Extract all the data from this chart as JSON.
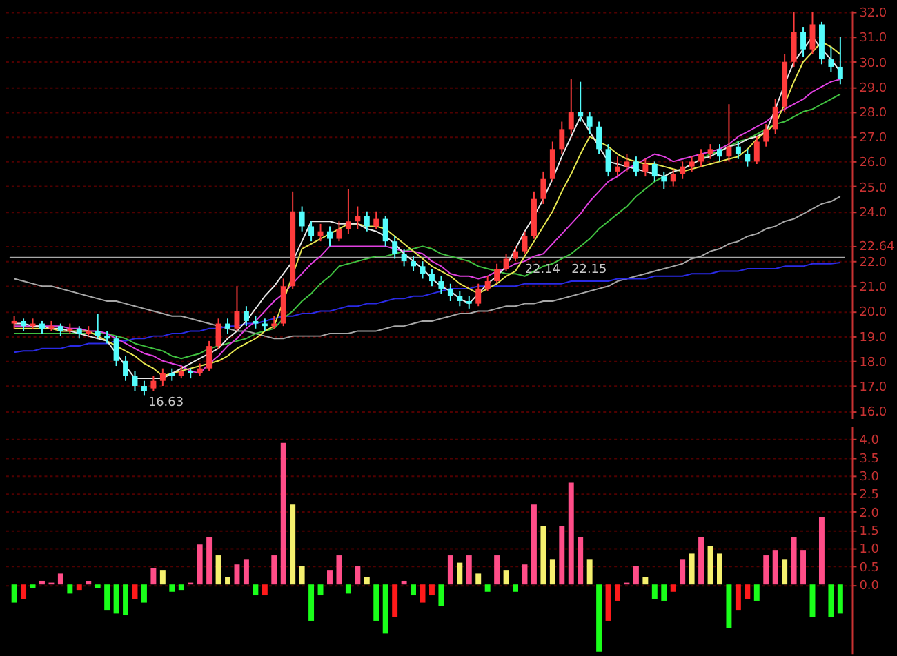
{
  "chart_data": [
    {
      "type": "candlestick",
      "categories": [
        null,
        null,
        null,
        null,
        null,
        null,
        null,
        null,
        null,
        null,
        null,
        null,
        null,
        null,
        null,
        null,
        null,
        null,
        null,
        null,
        null,
        null,
        null,
        null,
        null,
        null,
        null,
        null,
        null,
        null,
        null,
        null,
        null,
        null,
        null,
        null,
        null,
        null,
        null,
        null,
        null,
        null,
        null,
        null,
        null,
        null,
        null,
        null,
        null,
        null,
        null,
        null,
        null,
        null,
        null,
        null,
        null,
        null,
        null,
        null,
        null,
        null,
        null,
        null,
        null,
        null,
        null,
        null,
        null,
        null,
        null,
        null,
        null,
        null,
        null,
        null,
        null,
        null,
        null,
        null,
        null,
        null,
        null,
        null,
        null,
        null,
        null,
        null,
        null,
        null
      ],
      "ohlc": [
        [
          19.5,
          19.8,
          19.3,
          19.6
        ],
        [
          19.6,
          19.7,
          19.2,
          19.4
        ],
        [
          19.4,
          19.7,
          19.3,
          19.5
        ],
        [
          19.5,
          19.6,
          19.1,
          19.3
        ],
        [
          19.3,
          19.6,
          19.2,
          19.4
        ],
        [
          19.4,
          19.5,
          19.0,
          19.2
        ],
        [
          19.2,
          19.5,
          19.1,
          19.3
        ],
        [
          19.3,
          19.4,
          18.9,
          19.1
        ],
        [
          19.1,
          19.4,
          19.0,
          19.2
        ],
        [
          19.2,
          19.9,
          18.9,
          19.0
        ],
        [
          19.0,
          19.2,
          18.7,
          18.9
        ],
        [
          18.9,
          19.0,
          17.8,
          18.0
        ],
        [
          18.0,
          18.2,
          17.2,
          17.4
        ],
        [
          17.4,
          17.6,
          16.8,
          17.0
        ],
        [
          17.0,
          17.2,
          16.63,
          16.8
        ],
        [
          16.9,
          17.4,
          16.8,
          17.2
        ],
        [
          17.2,
          17.7,
          17.0,
          17.5
        ],
        [
          17.5,
          17.7,
          17.2,
          17.4
        ],
        [
          17.4,
          17.8,
          17.3,
          17.6
        ],
        [
          17.6,
          17.7,
          17.3,
          17.5
        ],
        [
          17.5,
          17.9,
          17.4,
          17.7
        ],
        [
          17.7,
          18.8,
          17.6,
          18.6
        ],
        [
          18.6,
          19.7,
          18.5,
          19.5
        ],
        [
          19.5,
          19.7,
          19.1,
          19.3
        ],
        [
          19.3,
          21.0,
          19.2,
          20.0
        ],
        [
          20.0,
          20.2,
          19.4,
          19.6
        ],
        [
          19.6,
          19.8,
          19.3,
          19.5
        ],
        [
          19.5,
          19.7,
          19.2,
          19.4
        ],
        [
          19.4,
          19.8,
          19.3,
          19.5
        ],
        [
          19.5,
          21.3,
          19.4,
          21.0
        ],
        [
          21.0,
          24.8,
          20.9,
          24.0
        ],
        [
          24.0,
          24.2,
          23.2,
          23.4
        ],
        [
          23.4,
          23.6,
          22.8,
          23.0
        ],
        [
          23.0,
          23.5,
          22.8,
          23.2
        ],
        [
          23.2,
          23.4,
          22.6,
          22.9
        ],
        [
          22.9,
          23.6,
          22.8,
          23.3
        ],
        [
          23.3,
          24.9,
          23.1,
          23.6
        ],
        [
          23.6,
          24.2,
          23.3,
          23.8
        ],
        [
          23.8,
          24.0,
          23.2,
          23.4
        ],
        [
          23.4,
          24.0,
          23.3,
          23.7
        ],
        [
          23.7,
          23.8,
          22.6,
          22.8
        ],
        [
          22.8,
          23.0,
          22.1,
          22.3
        ],
        [
          22.3,
          22.5,
          21.8,
          22.0
        ],
        [
          22.0,
          22.2,
          21.6,
          21.8
        ],
        [
          21.8,
          22.0,
          21.3,
          21.5
        ],
        [
          21.5,
          21.7,
          21.0,
          21.2
        ],
        [
          21.2,
          21.4,
          20.7,
          20.9
        ],
        [
          20.9,
          21.1,
          20.4,
          20.6
        ],
        [
          20.6,
          20.8,
          20.2,
          20.4
        ],
        [
          20.4,
          20.6,
          20.1,
          20.3
        ],
        [
          20.3,
          21.1,
          20.2,
          20.9
        ],
        [
          20.9,
          21.4,
          20.8,
          21.2
        ],
        [
          21.2,
          21.9,
          21.1,
          21.7
        ],
        [
          21.7,
          22.3,
          21.6,
          22.1
        ],
        [
          22.1,
          22.6,
          22.0,
          22.4
        ],
        [
          22.4,
          23.2,
          22.3,
          23.0
        ],
        [
          23.0,
          24.8,
          22.9,
          24.5
        ],
        [
          24.5,
          25.6,
          24.3,
          25.3
        ],
        [
          25.3,
          26.8,
          25.2,
          26.5
        ],
        [
          26.5,
          27.6,
          26.3,
          27.3
        ],
        [
          27.3,
          29.3,
          27.1,
          28.0
        ],
        [
          28.0,
          29.2,
          27.6,
          27.8
        ],
        [
          27.8,
          28.0,
          27.1,
          27.4
        ],
        [
          27.4,
          27.6,
          26.3,
          26.5
        ],
        [
          26.5,
          26.7,
          25.4,
          25.6
        ],
        [
          25.6,
          26.2,
          25.4,
          25.8
        ],
        [
          25.8,
          26.3,
          25.6,
          26.0
        ],
        [
          26.0,
          26.2,
          25.4,
          25.6
        ],
        [
          25.6,
          26.1,
          25.4,
          25.9
        ],
        [
          25.9,
          26.0,
          25.2,
          25.4
        ],
        [
          25.4,
          25.6,
          24.9,
          25.2
        ],
        [
          25.2,
          25.7,
          25.0,
          25.5
        ],
        [
          25.5,
          26.0,
          25.3,
          25.8
        ],
        [
          25.8,
          26.2,
          25.6,
          26.0
        ],
        [
          26.0,
          26.5,
          25.8,
          26.3
        ],
        [
          26.3,
          26.7,
          26.1,
          26.5
        ],
        [
          26.5,
          26.7,
          26.0,
          26.2
        ],
        [
          26.2,
          28.3,
          26.0,
          26.6
        ],
        [
          26.6,
          26.8,
          26.1,
          26.3
        ],
        [
          26.3,
          26.5,
          25.8,
          26.0
        ],
        [
          26.0,
          27.0,
          25.9,
          26.8
        ],
        [
          26.8,
          27.5,
          26.6,
          27.3
        ],
        [
          27.3,
          28.5,
          27.1,
          28.2
        ],
        [
          28.2,
          30.3,
          28.0,
          30.0
        ],
        [
          30.0,
          32.0,
          29.8,
          31.2
        ],
        [
          31.2,
          31.4,
          30.2,
          30.5
        ],
        [
          30.5,
          32.0,
          30.3,
          31.5
        ],
        [
          31.5,
          31.6,
          29.9,
          30.1
        ],
        [
          30.1,
          30.6,
          29.6,
          29.8
        ],
        [
          29.8,
          31.0,
          29.1,
          29.3
        ]
      ],
      "colors": [
        "#ff3c3c",
        "#54fcfc",
        "#ff3c3c",
        "#54fcfc",
        "#ff3c3c",
        "#54fcfc",
        "#ff3c3c",
        "#54fcfc",
        "#ff3c3c",
        "#54fcfc",
        "#54fcfc",
        "#54fcfc",
        "#54fcfc",
        "#54fcfc",
        "#54fcfc",
        "#ff3c3c",
        "#ff3c3c",
        "#54fcfc",
        "#ff3c3c",
        "#54fcfc",
        "#ff3c3c",
        "#ff3c3c",
        "#ff3c3c",
        "#54fcfc",
        "#ff3c3c",
        "#54fcfc",
        "#54fcfc",
        "#54fcfc",
        "#ff3c3c",
        "#ff3c3c",
        "#ff3c3c",
        "#54fcfc",
        "#54fcfc",
        "#ff3c3c",
        "#54fcfc",
        "#ff3c3c",
        "#ff3c3c",
        "#ff3c3c",
        "#54fcfc",
        "#ff3c3c",
        "#54fcfc",
        "#54fcfc",
        "#54fcfc",
        "#54fcfc",
        "#54fcfc",
        "#54fcfc",
        "#54fcfc",
        "#54fcfc",
        "#54fcfc",
        "#54fcfc",
        "#ff3c3c",
        "#ff3c3c",
        "#ff3c3c",
        "#ff3c3c",
        "#ff3c3c",
        "#ff3c3c",
        "#ff3c3c",
        "#ff3c3c",
        "#ff3c3c",
        "#ff3c3c",
        "#ff3c3c",
        "#54fcfc",
        "#54fcfc",
        "#54fcfc",
        "#54fcfc",
        "#ff3c3c",
        "#ff3c3c",
        "#54fcfc",
        "#ff3c3c",
        "#54fcfc",
        "#54fcfc",
        "#ff3c3c",
        "#ff3c3c",
        "#ff3c3c",
        "#ff3c3c",
        "#ff3c3c",
        "#54fcfc",
        "#ff3c3c",
        "#54fcfc",
        "#54fcfc",
        "#ff3c3c",
        "#ff3c3c",
        "#ff3c3c",
        "#ff3c3c",
        "#ff3c3c",
        "#54fcfc",
        "#ff3c3c",
        "#54fcfc",
        "#54fcfc",
        "#54fcfc"
      ],
      "series": [
        {
          "type": "line",
          "color": "#a8a8a8",
          "values": [
            21.3,
            21.2,
            21.1,
            21.0,
            21.0,
            20.9,
            20.8,
            20.7,
            20.6,
            20.5,
            20.4,
            20.4,
            20.3,
            20.2,
            20.1,
            20.0,
            19.9,
            19.8,
            19.8,
            19.7,
            19.6,
            19.5,
            19.4,
            19.3,
            19.2,
            19.2,
            19.1,
            19.0,
            18.9,
            18.9,
            19.0,
            19.0,
            19.0,
            19.0,
            19.1,
            19.1,
            19.1,
            19.2,
            19.2,
            19.2,
            19.3,
            19.4,
            19.4,
            19.5,
            19.6,
            19.6,
            19.7,
            19.8,
            19.9,
            19.9,
            20.0,
            20.0,
            20.1,
            20.2,
            20.2,
            20.3,
            20.3,
            20.4,
            20.4,
            20.5,
            20.6,
            20.7,
            20.8,
            20.9,
            21.0,
            21.2,
            21.3,
            21.4,
            21.5,
            21.6,
            21.7,
            21.8,
            21.9,
            22.1,
            22.2,
            22.4,
            22.5,
            22.7,
            22.8,
            23.0,
            23.1,
            23.3,
            23.4,
            23.6,
            23.7,
            23.9,
            24.1,
            24.3,
            24.4,
            24.6
          ]
        },
        {
          "type": "line",
          "color": "#2a2ae6",
          "values": [
            18.35,
            18.4,
            18.4,
            18.5,
            18.5,
            18.5,
            18.6,
            18.6,
            18.7,
            18.7,
            18.7,
            18.8,
            18.8,
            18.9,
            18.9,
            19.0,
            19.0,
            19.1,
            19.1,
            19.2,
            19.2,
            19.3,
            19.3,
            19.4,
            19.4,
            19.5,
            19.5,
            19.6,
            19.7,
            19.8,
            19.8,
            19.9,
            19.9,
            20.0,
            20.0,
            20.1,
            20.2,
            20.2,
            20.3,
            20.3,
            20.4,
            20.5,
            20.5,
            20.6,
            20.6,
            20.7,
            20.8,
            20.9,
            20.9,
            20.9,
            21.0,
            21.0,
            21.0,
            21.0,
            21.0,
            21.1,
            21.1,
            21.1,
            21.1,
            21.1,
            21.2,
            21.2,
            21.2,
            21.2,
            21.2,
            21.3,
            21.3,
            21.3,
            21.3,
            21.4,
            21.4,
            21.4,
            21.4,
            21.5,
            21.5,
            21.5,
            21.6,
            21.6,
            21.6,
            21.7,
            21.7,
            21.7,
            21.7,
            21.8,
            21.8,
            21.8,
            21.9,
            21.9,
            21.9,
            21.95
          ]
        },
        {
          "type": "line",
          "color": "#40c040",
          "values": [
            19.1,
            19.1,
            19.1,
            19.1,
            19.1,
            19.1,
            19.1,
            19.1,
            19.1,
            19.1,
            19.1,
            19.0,
            18.9,
            18.7,
            18.6,
            18.5,
            18.4,
            18.2,
            18.1,
            18.2,
            18.3,
            18.5,
            18.6,
            18.7,
            18.8,
            18.9,
            19.1,
            19.2,
            19.3,
            19.7,
            20.0,
            20.4,
            20.7,
            21.1,
            21.4,
            21.8,
            21.9,
            22.0,
            22.1,
            22.2,
            22.2,
            22.3,
            22.4,
            22.5,
            22.6,
            22.5,
            22.3,
            22.2,
            22.1,
            22.0,
            21.8,
            21.7,
            21.6,
            21.5,
            21.5,
            21.4,
            21.6,
            21.8,
            21.9,
            22.1,
            22.3,
            22.6,
            22.9,
            23.3,
            23.6,
            23.9,
            24.2,
            24.6,
            24.9,
            25.2,
            25.4,
            25.6,
            25.7,
            25.9,
            26.1,
            26.3,
            26.4,
            26.6,
            26.8,
            26.9,
            27.1,
            27.3,
            27.5,
            27.6,
            27.8,
            28.0,
            28.1,
            28.3,
            28.5,
            28.7
          ]
        },
        {
          "type": "line",
          "color": "#e040e0",
          "values": [
            19.4,
            19.4,
            19.4,
            19.4,
            19.4,
            19.4,
            19.3,
            19.3,
            19.2,
            19.2,
            19.1,
            18.9,
            18.7,
            18.5,
            18.3,
            18.2,
            18.0,
            17.9,
            17.8,
            17.6,
            17.5,
            17.9,
            18.2,
            18.6,
            18.9,
            19.3,
            19.6,
            20.0,
            20.4,
            20.7,
            21.1,
            21.5,
            21.9,
            22.2,
            22.6,
            22.6,
            22.6,
            22.6,
            22.6,
            22.6,
            22.6,
            22.5,
            22.4,
            22.4,
            22.3,
            22.0,
            21.8,
            21.5,
            21.4,
            21.4,
            21.3,
            21.4,
            21.6,
            21.7,
            21.9,
            22.0,
            22.2,
            22.3,
            22.7,
            23.1,
            23.5,
            23.9,
            24.4,
            24.8,
            25.2,
            25.4,
            25.7,
            25.9,
            26.1,
            26.3,
            26.2,
            26.0,
            26.1,
            26.2,
            26.3,
            26.4,
            26.5,
            26.7,
            27.0,
            27.2,
            27.4,
            27.6,
            27.9,
            28.1,
            28.3,
            28.5,
            28.8,
            29.0,
            29.2,
            29.3
          ]
        },
        {
          "type": "line",
          "color": "#e6e650",
          "values": [
            19.3,
            19.3,
            19.3,
            19.3,
            19.3,
            19.2,
            19.2,
            19.2,
            19.2,
            19.0,
            18.8,
            18.6,
            18.4,
            18.2,
            17.9,
            17.7,
            17.4,
            17.5,
            17.6,
            17.7,
            17.8,
            17.9,
            18.0,
            18.2,
            18.5,
            18.7,
            18.9,
            19.2,
            19.4,
            20.4,
            null,
            22.5,
            22.7,
            22.9,
            23.1,
            23.3,
            23.5,
            23.5,
            23.4,
            23.4,
            23.3,
            23.0,
            22.7,
            22.4,
            22.1,
            21.8,
            21.6,
            21.4,
            21.1,
            20.9,
            20.7,
            20.9,
            21.1,
            21.4,
            21.6,
            22.2,
            22.8,
            23.4,
            24.0,
            24.8,
            25.5,
            26.3,
            27.0,
            26.8,
            26.6,
            26.3,
            26.1,
            26.0,
            25.9,
            25.9,
            25.8,
            25.7,
            25.6,
            25.7,
            25.8,
            25.9,
            26.0,
            26.1,
            26.2,
            26.5,
            26.9,
            27.2,
            27.5,
            28.3,
            29.2,
            30.0,
            30.4,
            30.8,
            30.6,
            30.3
          ]
        },
        {
          "type": "line",
          "color": "#e8e8e8",
          "values": [
            19.5,
            19.5,
            19.4,
            19.4,
            19.3,
            19.3,
            19.2,
            19.1,
            19.0,
            18.9,
            18.8,
            18.3,
            17.8,
            17.3,
            17.3,
            17.3,
            17.3,
            17.5,
            17.7,
            17.9,
            18.1,
            18.3,
            18.5,
            18.9,
            19.2,
            19.6,
            20.1,
            20.6,
            21.0,
            21.5,
            22.0,
            22.8,
            23.6,
            23.6,
            23.6,
            23.5,
            23.5,
            23.5,
            23.3,
            23.2,
            23.0,
            22.7,
            22.3,
            22.0,
            21.7,
            21.3,
            21.0,
            20.8,
            20.5,
            20.3,
            20.7,
            21.1,
            21.4,
            21.8,
            22.5,
            23.2,
            23.8,
            24.5,
            25.3,
            26.2,
            27.0,
            27.8,
            27.2,
            26.6,
            26.0,
            25.9,
            25.8,
            25.7,
            25.6,
            25.5,
            25.4,
            25.6,
            25.7,
            25.9,
            26.1,
            26.2,
            26.4,
            26.6,
            26.7,
            26.9,
            27.0,
            27.2,
            28.1,
            29.1,
            30.0,
            30.5,
            31.0,
            30.5,
            30.1,
            29.6
          ]
        }
      ],
      "ylim": [
        15.7,
        32.05
      ],
      "yticks": [
        {
          "value": 16,
          "label": "16.0"
        },
        {
          "value": 17,
          "label": "17.0"
        },
        {
          "value": 18,
          "label": "18.0"
        },
        {
          "value": 19,
          "label": "19.0"
        },
        {
          "value": 20,
          "label": "20.0"
        },
        {
          "value": 21,
          "label": "21.0"
        },
        {
          "value": 22,
          "label": "22.0"
        },
        {
          "value": 22.64,
          "label": "22.64"
        },
        {
          "value": 24,
          "label": "24.0"
        },
        {
          "value": 25,
          "label": "25.0"
        },
        {
          "value": 26,
          "label": "26.0"
        },
        {
          "value": 27,
          "label": "27.0"
        },
        {
          "value": 28,
          "label": "28.0"
        },
        {
          "value": 29,
          "label": "29.0"
        },
        {
          "value": 30,
          "label": "30.0"
        },
        {
          "value": 31,
          "label": "31.0"
        },
        {
          "value": 32,
          "label": "32.0"
        }
      ],
      "grid": "y",
      "tick_labels": "y",
      "ref_lines": [
        {
          "axis": "y",
          "value": 22.15,
          "label": "22.15",
          "color": "#a8a8a8"
        }
      ],
      "annotations": [
        "16.63",
        "22.14"
      ]
    },
    {
      "type": "bar",
      "categories": [
        null,
        null,
        null,
        null,
        null,
        null,
        null,
        null,
        null,
        null,
        null,
        null,
        null,
        null,
        null,
        null,
        null,
        null,
        null,
        null,
        null,
        null,
        null,
        null,
        null,
        null,
        null,
        null,
        null,
        null,
        null,
        null,
        null,
        null,
        null,
        null,
        null,
        null,
        null,
        null,
        null,
        null,
        null,
        null,
        null,
        null,
        null,
        null,
        null,
        null,
        null,
        null,
        null,
        null,
        null,
        null,
        null,
        null,
        null,
        null,
        null,
        null,
        null,
        null,
        null,
        null,
        null,
        null,
        null,
        null,
        null,
        null,
        null,
        null,
        null,
        null,
        null,
        null,
        null,
        null,
        null,
        null,
        null,
        null,
        null,
        null,
        null,
        null,
        null,
        null
      ],
      "values": [
        -0.5,
        -0.4,
        -0.1,
        0.1,
        0.05,
        0.3,
        -0.25,
        -0.15,
        0.1,
        -0.1,
        -0.7,
        -0.8,
        -0.85,
        -0.4,
        -0.5,
        0.45,
        0.4,
        -0.2,
        -0.15,
        0.05,
        1.1,
        1.3,
        0.8,
        0.2,
        0.55,
        0.7,
        -0.3,
        -0.3,
        0.8,
        3.9,
        2.2,
        0.5,
        -1.0,
        -0.3,
        0.4,
        0.8,
        -0.25,
        0.5,
        0.2,
        -1.0,
        -1.35,
        -0.9,
        0.1,
        -0.3,
        -0.5,
        -0.3,
        -0.6,
        0.8,
        0.6,
        0.8,
        0.3,
        -0.2,
        0.8,
        0.4,
        -0.2,
        0.55,
        2.2,
        1.6,
        0.7,
        1.6,
        2.8,
        1.3,
        0.7,
        -1.85,
        -1.0,
        -0.45,
        0.05,
        0.5,
        0.2,
        -0.4,
        -0.45,
        -0.2,
        0.7,
        0.85,
        1.3,
        1.05,
        0.85,
        -1.2,
        -0.7,
        -0.4,
        -0.45,
        0.8,
        0.95,
        0.7,
        1.3,
        0.95,
        -0.9,
        1.85,
        -0.9,
        -0.8
      ],
      "colors": [
        "#1aff1a",
        "#ff1a1a",
        "#1aff1a",
        "#ff4d88",
        "#ff4d88",
        "#ff4d88",
        "#1aff1a",
        "#ff1a1a",
        "#ff4d88",
        "#1aff1a",
        "#1aff1a",
        "#1aff1a",
        "#1aff1a",
        "#ff1a1a",
        "#1aff1a",
        "#ff4d88",
        "#f5f06e",
        "#1aff1a",
        "#1aff1a",
        "#ff4d88",
        "#ff4d88",
        "#ff4d88",
        "#f5f06e",
        "#f5f06e",
        "#ff4d88",
        "#ff4d88",
        "#1aff1a",
        "#ff1a1a",
        "#ff4d88",
        "#ff4d88",
        "#f5f06e",
        "#f5f06e",
        "#1aff1a",
        "#1aff1a",
        "#ff4d88",
        "#ff4d88",
        "#1aff1a",
        "#ff4d88",
        "#f5f06e",
        "#1aff1a",
        "#1aff1a",
        "#ff1a1a",
        "#ff4d88",
        "#1aff1a",
        "#ff1a1a",
        "#ff1a1a",
        "#1aff1a",
        "#ff4d88",
        "#f5f06e",
        "#ff4d88",
        "#f5f06e",
        "#1aff1a",
        "#ff4d88",
        "#f5f06e",
        "#1aff1a",
        "#ff4d88",
        "#ff4d88",
        "#f5f06e",
        "#f5f06e",
        "#ff4d88",
        "#ff4d88",
        "#ff4d88",
        "#f5f06e",
        "#1aff1a",
        "#ff1a1a",
        "#ff1a1a",
        "#ff4d88",
        "#ff4d88",
        "#f5f06e",
        "#1aff1a",
        "#1aff1a",
        "#ff1a1a",
        "#ff4d88",
        "#f5f06e",
        "#ff4d88",
        "#f5f06e",
        "#f5f06e",
        "#1aff1a",
        "#ff1a1a",
        "#ff1a1a",
        "#1aff1a",
        "#ff4d88",
        "#ff4d88",
        "#f5f06e",
        "#ff4d88",
        "#ff4d88",
        "#1aff1a",
        "#ff4d88",
        "#1aff1a",
        "#1aff1a"
      ],
      "ylim": [
        -1.9,
        4.35
      ],
      "yticks": [
        {
          "value": 0,
          "label": "0.0"
        },
        {
          "value": 0.5,
          "label": "0.5"
        },
        {
          "value": 1,
          "label": "1.0"
        },
        {
          "value": 1.5,
          "label": "1.5"
        },
        {
          "value": 2,
          "label": "2.0"
        },
        {
          "value": 2.5,
          "label": "2.5"
        },
        {
          "value": 3,
          "label": "3.0"
        },
        {
          "value": 3.5,
          "label": "3.5"
        },
        {
          "value": 4,
          "label": "4.0"
        }
      ],
      "grid": "y",
      "tick_labels": "y"
    }
  ]
}
